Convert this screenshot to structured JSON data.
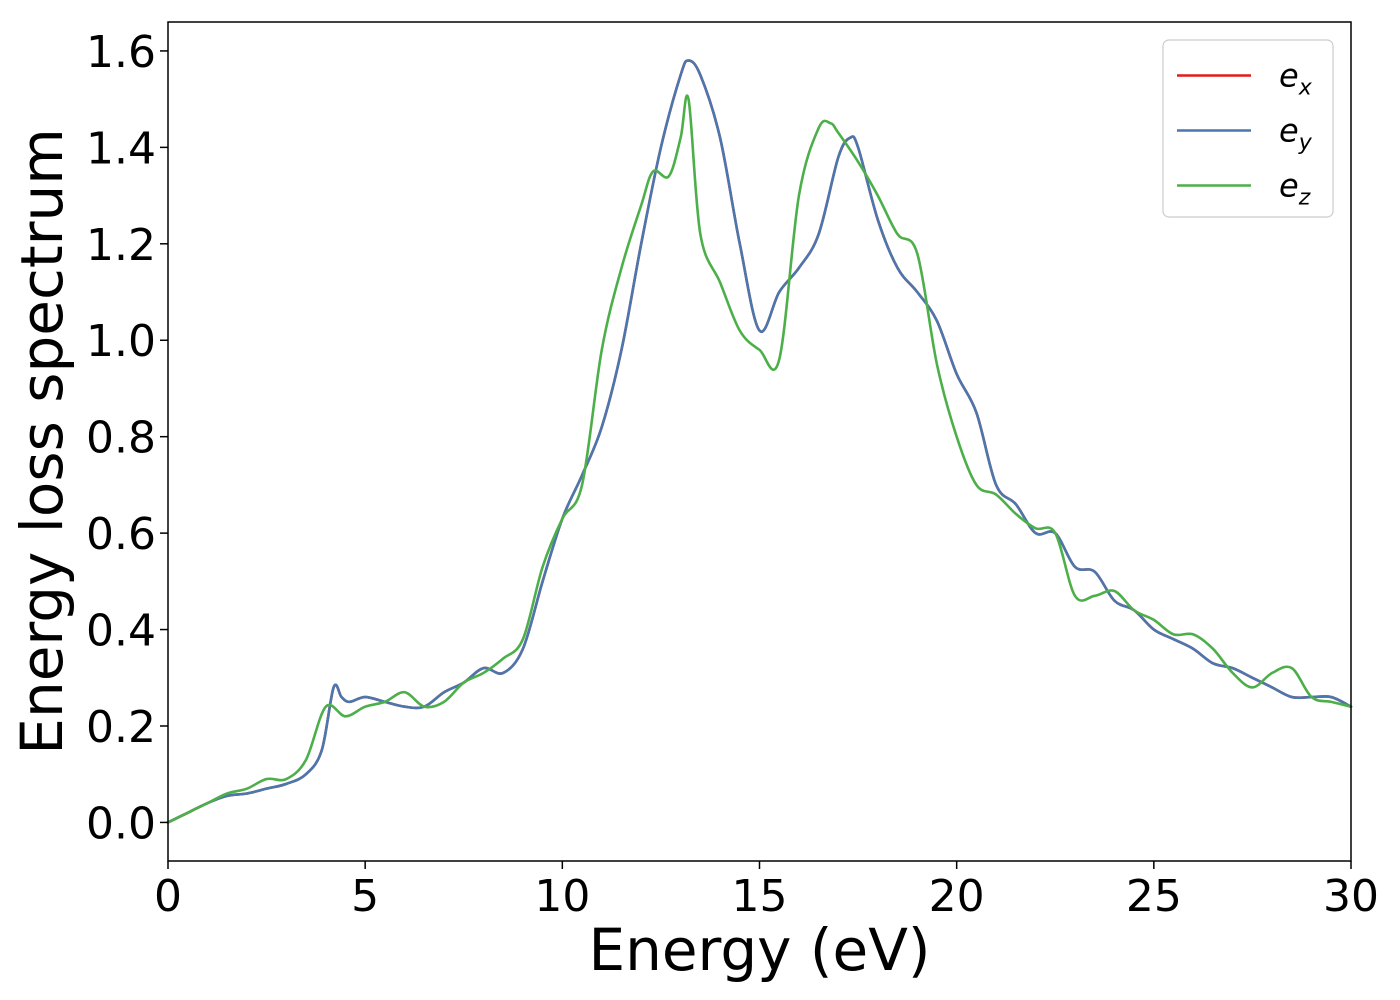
{
  "chart_data": {
    "type": "line",
    "xlabel": "Energy (eV)",
    "ylabel": "Energy loss spectrum",
    "xlim": [
      0,
      30
    ],
    "ylim": [
      -0.08,
      1.66
    ],
    "xticks": [
      0,
      5,
      10,
      15,
      20,
      25,
      30
    ],
    "xtick_labels": [
      "0",
      "5",
      "10",
      "15",
      "20",
      "25",
      "30"
    ],
    "yticks": [
      0.0,
      0.2,
      0.4,
      0.6,
      0.8,
      1.0,
      1.2,
      1.4,
      1.6
    ],
    "ytick_labels": [
      "0.0",
      "0.2",
      "0.4",
      "0.6",
      "0.8",
      "1.0",
      "1.2",
      "1.4",
      "1.6"
    ],
    "grid": false,
    "legend_position": "top-right",
    "series": [
      {
        "name": "e_x",
        "legend_base": "e",
        "legend_sub": "x",
        "color": "#e41a1c",
        "x": [
          0,
          0.5,
          1,
          1.5,
          2,
          2.5,
          3,
          3.5,
          3.9,
          4.2,
          4.4,
          4.6,
          5,
          5.5,
          6,
          6.5,
          7,
          7.5,
          8,
          8.5,
          9,
          9.5,
          10,
          10.5,
          11,
          11.5,
          12,
          12.5,
          13,
          13.2,
          13.5,
          14,
          14.5,
          15,
          15.5,
          16,
          16.5,
          17,
          17.3,
          17.5,
          18,
          18.5,
          19,
          19.5,
          20,
          20.5,
          21,
          21.5,
          22,
          22.5,
          23,
          23.5,
          24,
          24.5,
          25,
          25.5,
          26,
          26.5,
          27,
          27.5,
          28,
          28.5,
          29,
          29.5,
          30
        ],
        "y": [
          0.0,
          0.02,
          0.04,
          0.055,
          0.06,
          0.07,
          0.08,
          0.1,
          0.15,
          0.28,
          0.26,
          0.25,
          0.26,
          0.25,
          0.24,
          0.24,
          0.27,
          0.29,
          0.32,
          0.31,
          0.36,
          0.5,
          0.63,
          0.72,
          0.82,
          0.98,
          1.2,
          1.4,
          1.55,
          1.58,
          1.55,
          1.42,
          1.2,
          1.02,
          1.1,
          1.15,
          1.22,
          1.38,
          1.42,
          1.4,
          1.25,
          1.15,
          1.1,
          1.04,
          0.93,
          0.85,
          0.7,
          0.66,
          0.6,
          0.6,
          0.53,
          0.52,
          0.46,
          0.44,
          0.4,
          0.38,
          0.36,
          0.33,
          0.32,
          0.3,
          0.28,
          0.26,
          0.26,
          0.26,
          0.24
        ]
      },
      {
        "name": "e_y",
        "legend_base": "e",
        "legend_sub": "y",
        "color": "#4a77ad",
        "x": [
          0,
          0.5,
          1,
          1.5,
          2,
          2.5,
          3,
          3.5,
          3.9,
          4.2,
          4.4,
          4.6,
          5,
          5.5,
          6,
          6.5,
          7,
          7.5,
          8,
          8.5,
          9,
          9.5,
          10,
          10.5,
          11,
          11.5,
          12,
          12.5,
          13,
          13.2,
          13.5,
          14,
          14.5,
          15,
          15.5,
          16,
          16.5,
          17,
          17.3,
          17.5,
          18,
          18.5,
          19,
          19.5,
          20,
          20.5,
          21,
          21.5,
          22,
          22.5,
          23,
          23.5,
          24,
          24.5,
          25,
          25.5,
          26,
          26.5,
          27,
          27.5,
          28,
          28.5,
          29,
          29.5,
          30
        ],
        "y": [
          0.0,
          0.02,
          0.04,
          0.055,
          0.06,
          0.07,
          0.08,
          0.1,
          0.15,
          0.28,
          0.26,
          0.25,
          0.26,
          0.25,
          0.24,
          0.24,
          0.27,
          0.29,
          0.32,
          0.31,
          0.36,
          0.5,
          0.63,
          0.72,
          0.82,
          0.98,
          1.2,
          1.4,
          1.55,
          1.58,
          1.55,
          1.42,
          1.2,
          1.02,
          1.1,
          1.15,
          1.22,
          1.38,
          1.42,
          1.4,
          1.25,
          1.15,
          1.1,
          1.04,
          0.93,
          0.85,
          0.7,
          0.66,
          0.6,
          0.6,
          0.53,
          0.52,
          0.46,
          0.44,
          0.4,
          0.38,
          0.36,
          0.33,
          0.32,
          0.3,
          0.28,
          0.26,
          0.26,
          0.26,
          0.24
        ]
      },
      {
        "name": "e_z",
        "legend_base": "e",
        "legend_sub": "z",
        "color": "#4daf4a",
        "x": [
          0,
          0.5,
          1,
          1.5,
          2,
          2.5,
          3,
          3.5,
          4,
          4.5,
          5,
          5.5,
          6,
          6.5,
          7,
          7.5,
          8,
          8.5,
          9,
          9.5,
          10,
          10.5,
          11,
          11.5,
          12,
          12.3,
          12.7,
          13,
          13.2,
          13.5,
          14,
          14.5,
          15,
          15.5,
          16,
          16.5,
          16.8,
          17,
          17.5,
          18,
          18.5,
          19,
          19.5,
          20,
          20.5,
          21,
          21.5,
          22,
          22.5,
          23,
          23.5,
          24,
          24.5,
          25,
          25.5,
          26,
          26.5,
          27,
          27.5,
          28,
          28.5,
          29,
          29.5,
          30
        ],
        "y": [
          0.0,
          0.02,
          0.04,
          0.06,
          0.07,
          0.09,
          0.09,
          0.13,
          0.24,
          0.22,
          0.24,
          0.25,
          0.27,
          0.24,
          0.25,
          0.29,
          0.31,
          0.34,
          0.38,
          0.53,
          0.63,
          0.7,
          0.98,
          1.15,
          1.28,
          1.35,
          1.34,
          1.42,
          1.5,
          1.22,
          1.12,
          1.02,
          0.98,
          0.96,
          1.3,
          1.44,
          1.45,
          1.43,
          1.37,
          1.3,
          1.22,
          1.18,
          0.95,
          0.8,
          0.7,
          0.68,
          0.64,
          0.61,
          0.6,
          0.47,
          0.47,
          0.48,
          0.44,
          0.42,
          0.39,
          0.39,
          0.36,
          0.31,
          0.28,
          0.31,
          0.32,
          0.26,
          0.25,
          0.24
        ]
      }
    ]
  }
}
